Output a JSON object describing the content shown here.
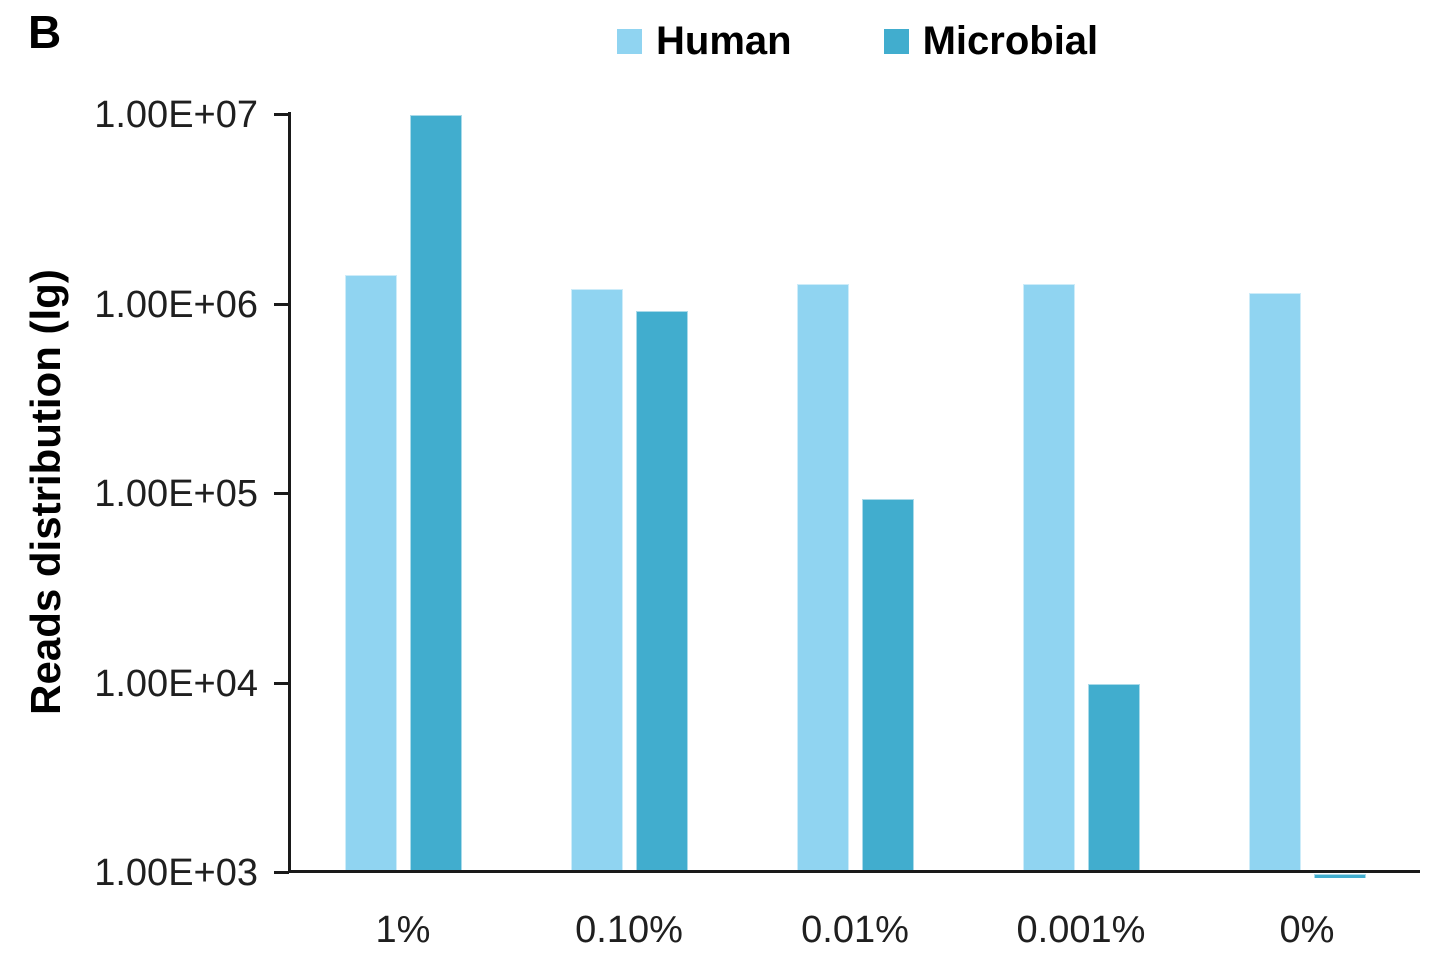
{
  "panel_label": "B",
  "legend": {
    "items": [
      {
        "label": "Human",
        "color": "#90D4F1"
      },
      {
        "label": "Microbial",
        "color": "#41ADCE"
      }
    ]
  },
  "yaxis": {
    "title": "Reads distribution (lg)",
    "scale": "log",
    "ticks": [
      {
        "label": "1.00E+07",
        "value": 10000000
      },
      {
        "label": "1.00E+06",
        "value": 1000000
      },
      {
        "label": "1.00E+05",
        "value": 100000
      },
      {
        "label": "1.00E+04",
        "value": 10000
      },
      {
        "label": "1.00E+03",
        "value": 1000
      }
    ]
  },
  "xaxis": {
    "categories": [
      "1%",
      "0.10%",
      "0.01%",
      "0.001%",
      "0%"
    ]
  },
  "chart_data": {
    "type": "bar",
    "title": "",
    "panel_label": "B",
    "categories": [
      "1%",
      "0.10%",
      "0.01%",
      "0.001%",
      "0%"
    ],
    "series": [
      {
        "name": "Human",
        "color": "#90D4F1",
        "values": [
          1430000,
          1200000,
          1280000,
          1290000,
          1150000
        ]
      },
      {
        "name": "Microbial",
        "color": "#41ADCE",
        "values": [
          10000000,
          920000,
          94000,
          9900,
          970
        ]
      }
    ],
    "xlabel": "",
    "ylabel": "Reads distribution (lg)",
    "yscale": "log",
    "ylim": [
      1000,
      10000000
    ],
    "ytick_labels": [
      "1.00E+07",
      "1.00E+06",
      "1.00E+05",
      "1.00E+04",
      "1.00E+03"
    ],
    "grid": false,
    "legend_position": "top-center"
  }
}
